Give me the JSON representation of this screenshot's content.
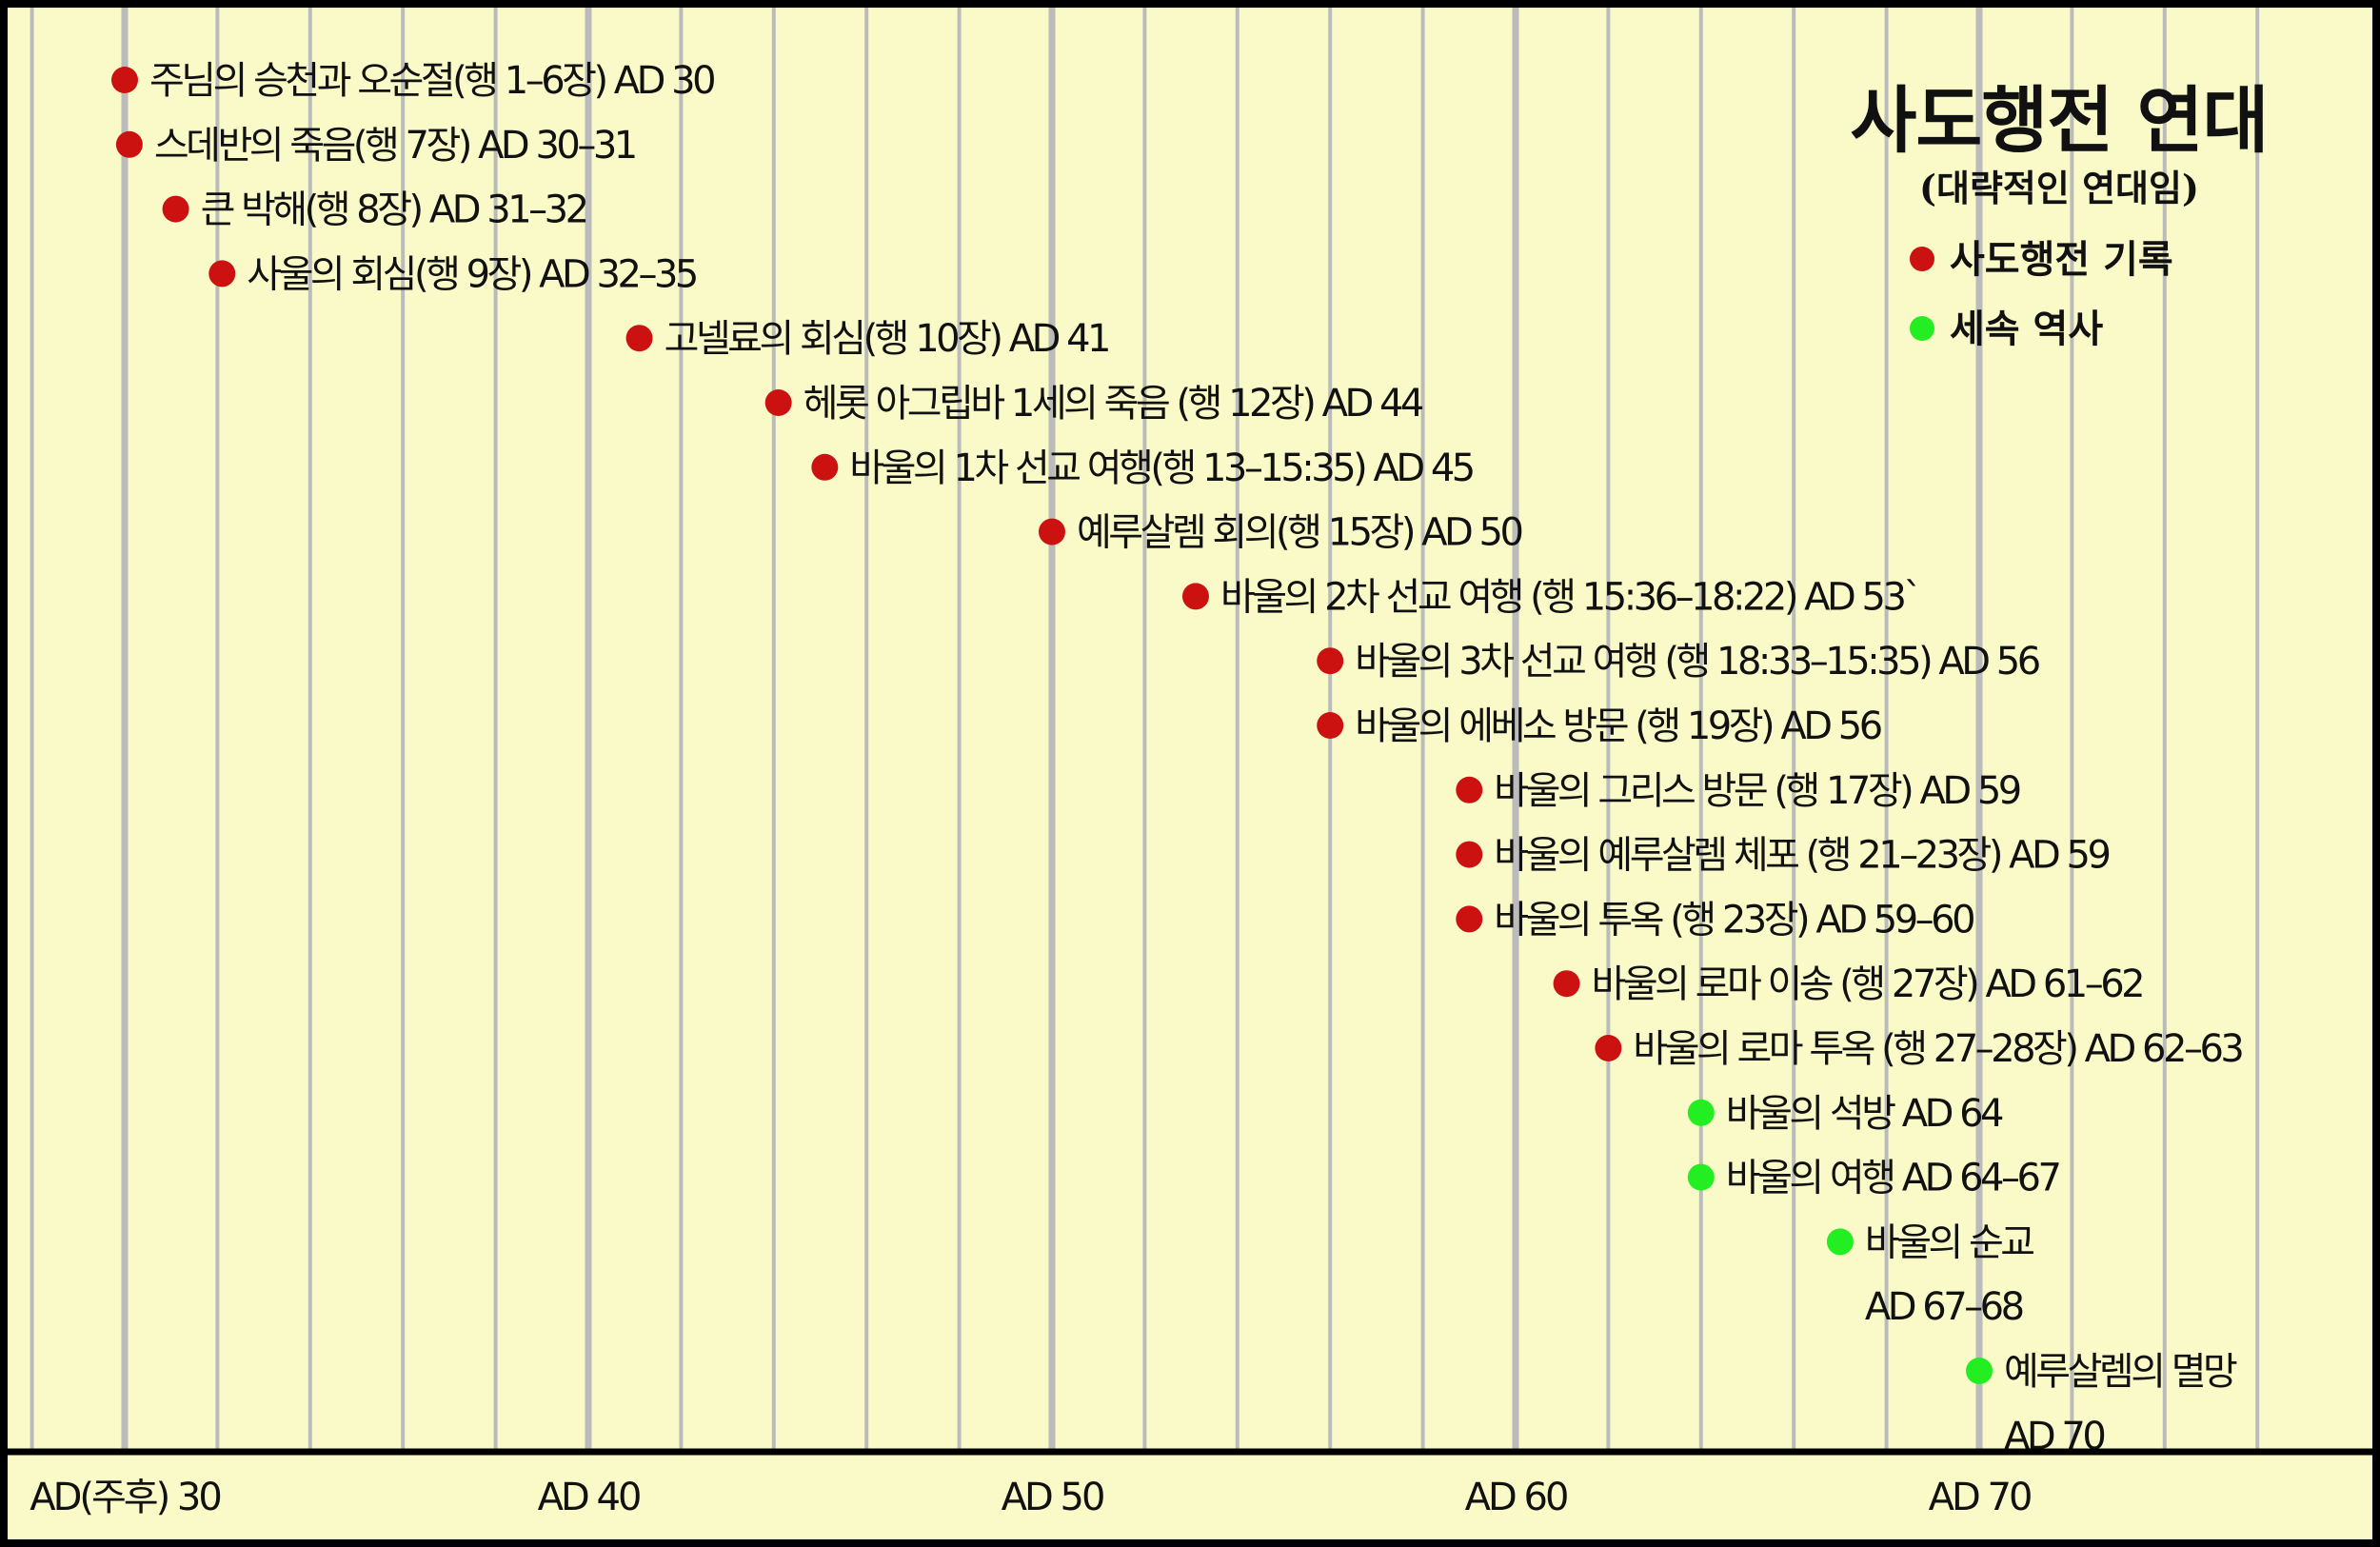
{
  "chart_data": {
    "type": "timeline",
    "title": "사도행전 연대",
    "subtitle": "(대략적인 연대임)",
    "xlim": [
      25,
      77
    ],
    "x_ticks": [
      {
        "year": 30,
        "label": "AD(주후) 30"
      },
      {
        "year": 40,
        "label": "AD 40"
      },
      {
        "year": 50,
        "label": "AD 50"
      },
      {
        "year": 60,
        "label": "AD 60"
      },
      {
        "year": 70,
        "label": "AD 70"
      }
    ],
    "legend": [
      {
        "name": "사도행전 기록",
        "color": "#cc1111"
      },
      {
        "name": "세속 역사",
        "color": "#22ee22"
      }
    ],
    "series_colors": {
      "acts": "#cc1111",
      "secular": "#22ee22"
    },
    "events": [
      {
        "year": 30,
        "category": "acts",
        "lines": [
          "주님의 승천과 오순절(행 1–6장) AD 30"
        ]
      },
      {
        "year": 30.1,
        "category": "acts",
        "lines": [
          "스데반의 죽음(행 7장) AD 30–31"
        ]
      },
      {
        "year": 31.1,
        "category": "acts",
        "lines": [
          "큰 박해(행 8장) AD 31–32"
        ]
      },
      {
        "year": 32.1,
        "category": "acts",
        "lines": [
          "사울의 회심(행 9장) AD 32–35"
        ]
      },
      {
        "year": 41.1,
        "category": "acts",
        "lines": [
          "고넬료의 회심(행 10장) AD 41"
        ]
      },
      {
        "year": 44.1,
        "category": "acts",
        "lines": [
          "헤롯 아그립바 1세의 죽음 (행 12장) AD 44"
        ]
      },
      {
        "year": 45.1,
        "category": "acts",
        "lines": [
          "바울의 1차 선교 여행(행 13–15:35) AD 45"
        ]
      },
      {
        "year": 50,
        "category": "acts",
        "lines": [
          "예루살렘 회의(행 15장) AD 50"
        ]
      },
      {
        "year": 53.1,
        "category": "acts",
        "lines": [
          "바울의 2차 선교 여행 (행 15:36–18:22) AD 53`"
        ]
      },
      {
        "year": 56,
        "category": "acts",
        "lines": [
          "바울의 3차 선교 여행 (행 18:33–15:35) AD 56"
        ]
      },
      {
        "year": 56,
        "category": "acts",
        "lines": [
          "바울의 에베소 방문 (행 19장) AD 56"
        ]
      },
      {
        "year": 59,
        "category": "acts",
        "lines": [
          "바울의 그리스 방문 (행 17장) AD 59"
        ]
      },
      {
        "year": 59,
        "category": "acts",
        "lines": [
          "바울의 예루살렘 체포 (행 21–23장) AD 59"
        ]
      },
      {
        "year": 59,
        "category": "acts",
        "lines": [
          "바울의 투옥 (행 23장) AD 59–60"
        ]
      },
      {
        "year": 61.1,
        "category": "acts",
        "lines": [
          "바울의 로마 이송 (행 27장) AD 61–62"
        ]
      },
      {
        "year": 62,
        "category": "acts",
        "lines": [
          "바울의 로마 투옥 (행 27–28장) AD 62–63"
        ]
      },
      {
        "year": 64,
        "category": "secular",
        "lines": [
          "바울의 석방 AD 64"
        ]
      },
      {
        "year": 64,
        "category": "secular",
        "lines": [
          "바울의 여행 AD 64–67"
        ]
      },
      {
        "year": 67,
        "category": "secular",
        "lines": [
          "바울의 순교",
          "AD 67–68"
        ]
      },
      {
        "year": 70,
        "category": "secular",
        "lines": [
          "예루살렘의 멸망",
          "AD 70"
        ]
      }
    ]
  }
}
